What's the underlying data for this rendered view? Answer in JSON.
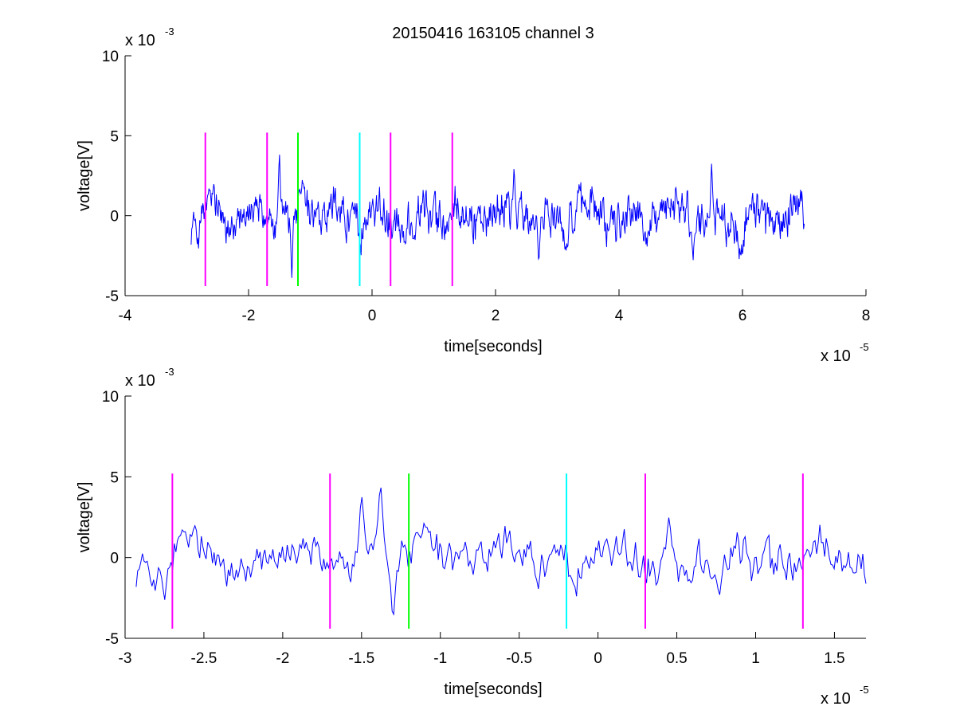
{
  "figure": {
    "title": "20150416 163105 channel 3"
  },
  "chart_data": [
    {
      "type": "line",
      "title": "20150416 163105 channel 3",
      "xlabel": "time[seconds]",
      "ylabel": "voltage[V]",
      "x_scale_label": "x 10",
      "x_scale_exp": "-5",
      "y_scale_label": "x 10",
      "y_scale_exp": "-3",
      "xlim": [
        -4,
        8
      ],
      "ylim": [
        -5,
        10
      ],
      "xticks": [
        -4,
        -2,
        0,
        2,
        4,
        6,
        8
      ],
      "xtick_labels": [
        "-4",
        "-2",
        "0",
        "2",
        "4",
        "6",
        "8"
      ],
      "yticks": [
        -5,
        0,
        5,
        10
      ],
      "ytick_labels": [
        "-5",
        "0",
        "5",
        "10"
      ],
      "grid": false,
      "series": [
        {
          "color": "#0000ff",
          "x_start": -2.93,
          "x_end": 7.0,
          "points": 1000,
          "peaks": [
            [
              -1.5,
              3.9
            ],
            [
              2.3,
              3.0
            ],
            [
              5.5,
              3.3
            ]
          ],
          "troughs": [
            [
              -1.3,
              -3.9
            ],
            [
              2.7,
              -3.0
            ],
            [
              5.2,
              -2.8
            ]
          ]
        }
      ],
      "markers": [
        {
          "x": -2.7,
          "y0": -4.4,
          "y1": 5.2,
          "color": "#ff00ff"
        },
        {
          "x": -1.7,
          "y0": -4.4,
          "y1": 5.2,
          "color": "#ff00ff"
        },
        {
          "x": -1.2,
          "y0": -4.4,
          "y1": 5.2,
          "color": "#00ff00"
        },
        {
          "x": -0.2,
          "y0": -4.4,
          "y1": 5.2,
          "color": "#00ffff"
        },
        {
          "x": 0.3,
          "y0": -4.4,
          "y1": 5.2,
          "color": "#ff00ff"
        },
        {
          "x": 1.3,
          "y0": -4.4,
          "y1": 5.2,
          "color": "#ff00ff"
        }
      ]
    },
    {
      "type": "line",
      "title": "",
      "xlabel": "time[seconds]",
      "ylabel": "voltage[V]",
      "x_scale_label": "x 10",
      "x_scale_exp": "-5",
      "y_scale_label": "x 10",
      "y_scale_exp": "-3",
      "xlim": [
        -3.0,
        1.7
      ],
      "ylim": [
        -5,
        10
      ],
      "xticks": [
        -3,
        -2.5,
        -2,
        -1.5,
        -1,
        -0.5,
        0,
        0.5,
        1,
        1.5
      ],
      "xtick_labels": [
        "-3",
        "-2.5",
        "-2",
        "-1.5",
        "-1",
        "-0.5",
        "0",
        "0.5",
        "1",
        "1.5"
      ],
      "yticks": [
        -5,
        0,
        5,
        10
      ],
      "ytick_labels": [
        "-5",
        "0",
        "5",
        "10"
      ],
      "grid": false,
      "series": [
        {
          "color": "#0000ff",
          "x_start": -2.93,
          "x_end": 1.7,
          "points": 460,
          "peaks": [
            [
              -1.5,
              3.9
            ],
            [
              -1.38,
              4.6
            ],
            [
              0.45,
              2.5
            ]
          ],
          "troughs": [
            [
              -1.3,
              -3.9
            ],
            [
              -2.75,
              -2.7
            ],
            [
              0.77,
              -2.4
            ]
          ]
        }
      ],
      "markers": [
        {
          "x": -2.7,
          "y0": -4.4,
          "y1": 5.2,
          "color": "#ff00ff"
        },
        {
          "x": -1.7,
          "y0": -4.4,
          "y1": 5.2,
          "color": "#ff00ff"
        },
        {
          "x": -1.2,
          "y0": -4.4,
          "y1": 5.2,
          "color": "#00ff00"
        },
        {
          "x": -0.2,
          "y0": -4.4,
          "y1": 5.2,
          "color": "#00ffff"
        },
        {
          "x": 0.3,
          "y0": -4.4,
          "y1": 5.2,
          "color": "#ff00ff"
        },
        {
          "x": 1.3,
          "y0": -4.4,
          "y1": 5.2,
          "color": "#ff00ff"
        }
      ]
    }
  ]
}
